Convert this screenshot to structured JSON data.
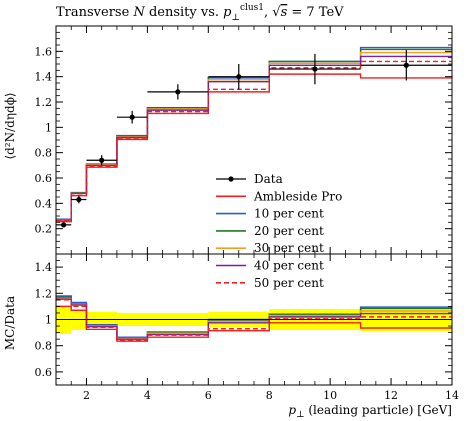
{
  "chart_data": {
    "type": "line",
    "title": "Transverse N density vs. p⊥clus1, √s = 7 TeV",
    "title_parts": {
      "lead": "Transverse ",
      "var": "N",
      "mid": " density vs. ",
      "p": "p",
      "perp": "⊥",
      "sup": "clus1",
      "sep": ", ",
      "sqrt_sym": "√",
      "s": "s",
      "energy": " = 7 TeV"
    },
    "xlabel": "p⊥ (leading particle) [GeV]",
    "xlabel_parts": {
      "p": "p",
      "perp": "⊥",
      "rest": " (leading particle) [GeV]"
    },
    "ylabel": "⟨d²N/dηdϕ⟩",
    "ratio_ylabel": "MC/Data",
    "xlim": [
      1,
      14
    ],
    "ylim": [
      0,
      1.8
    ],
    "ratio_ylim": [
      0.5,
      1.5
    ],
    "xticks": [
      2,
      4,
      6,
      8,
      10,
      12,
      14
    ],
    "xtick_labels": [
      "2",
      "4",
      "6",
      "8",
      "10",
      "12",
      "14"
    ],
    "yticks": [
      0.2,
      0.4,
      0.6,
      0.8,
      1.0,
      1.2,
      1.4,
      1.6
    ],
    "ytick_labels": [
      "0.2",
      "0.4",
      "0.6",
      "0.8",
      "1",
      "1.2",
      "1.4",
      "1.6"
    ],
    "ratio_yticks": [
      0.6,
      0.8,
      1.0,
      1.2,
      1.4
    ],
    "ratio_ytick_labels": [
      "0.6",
      "0.8",
      "1",
      "1.2",
      "1.4"
    ],
    "bin_edges": [
      1.0,
      1.5,
      2.0,
      3.0,
      4.0,
      6.0,
      8.0,
      11.0,
      14.0
    ],
    "data": {
      "name": "Data",
      "x": [
        1.25,
        1.75,
        2.5,
        3.5,
        5.0,
        7.0,
        9.5,
        12.5
      ],
      "y": [
        0.23,
        0.43,
        0.74,
        1.08,
        1.28,
        1.4,
        1.46,
        1.49
      ],
      "yerr": [
        0.02,
        0.03,
        0.04,
        0.05,
        0.06,
        0.1,
        0.12,
        0.12
      ],
      "ratio_band_halfwidth": [
        0.11,
        0.08,
        0.06,
        0.05,
        0.05,
        0.06,
        0.08,
        0.09
      ],
      "color": "#000000"
    },
    "series": [
      {
        "name": "Ambleside Pro",
        "color": "#ee2020",
        "dash": "solid",
        "values": [
          0.255,
          0.46,
          0.685,
          0.905,
          1.11,
          1.28,
          1.42,
          1.39
        ],
        "ratio": [
          1.1,
          1.07,
          0.925,
          0.835,
          0.865,
          0.915,
          0.975,
          0.935
        ]
      },
      {
        "name": "10 per cent",
        "color": "#2a5bd7",
        "dash": "solid",
        "values": [
          0.275,
          0.485,
          0.71,
          0.935,
          1.15,
          1.39,
          1.52,
          1.63
        ],
        "ratio": [
          1.18,
          1.13,
          0.96,
          0.865,
          0.9,
          0.995,
          1.04,
          1.095
        ]
      },
      {
        "name": "20 per cent",
        "color": "#1e7a1e",
        "dash": "solid",
        "values": [
          0.272,
          0.483,
          0.708,
          0.93,
          1.155,
          1.395,
          1.52,
          1.615
        ],
        "ratio": [
          1.17,
          1.12,
          0.955,
          0.86,
          0.905,
          1.0,
          1.04,
          1.085
        ]
      },
      {
        "name": "30 per cent",
        "color": "#f0a020",
        "dash": "solid",
        "values": [
          0.27,
          0.48,
          0.705,
          0.925,
          1.145,
          1.375,
          1.505,
          1.59
        ],
        "ratio": [
          1.16,
          1.115,
          0.95,
          0.855,
          0.895,
          0.985,
          1.03,
          1.065
        ]
      },
      {
        "name": "40 per cent",
        "color": "#7a1fa2",
        "dash": "solid",
        "values": [
          0.268,
          0.478,
          0.7,
          0.92,
          1.135,
          1.36,
          1.49,
          1.56
        ],
        "ratio": [
          1.155,
          1.11,
          0.945,
          0.85,
          0.885,
          0.975,
          1.02,
          1.045
        ]
      },
      {
        "name": "50 per cent",
        "color": "#ee2020",
        "dash": "dashed",
        "values": [
          0.265,
          0.475,
          0.695,
          0.915,
          1.125,
          1.3,
          1.47,
          1.52
        ],
        "ratio": [
          1.15,
          1.1,
          0.94,
          0.845,
          0.88,
          0.93,
          1.005,
          1.02
        ]
      }
    ],
    "legend_position": "right-lower",
    "grid": false
  }
}
